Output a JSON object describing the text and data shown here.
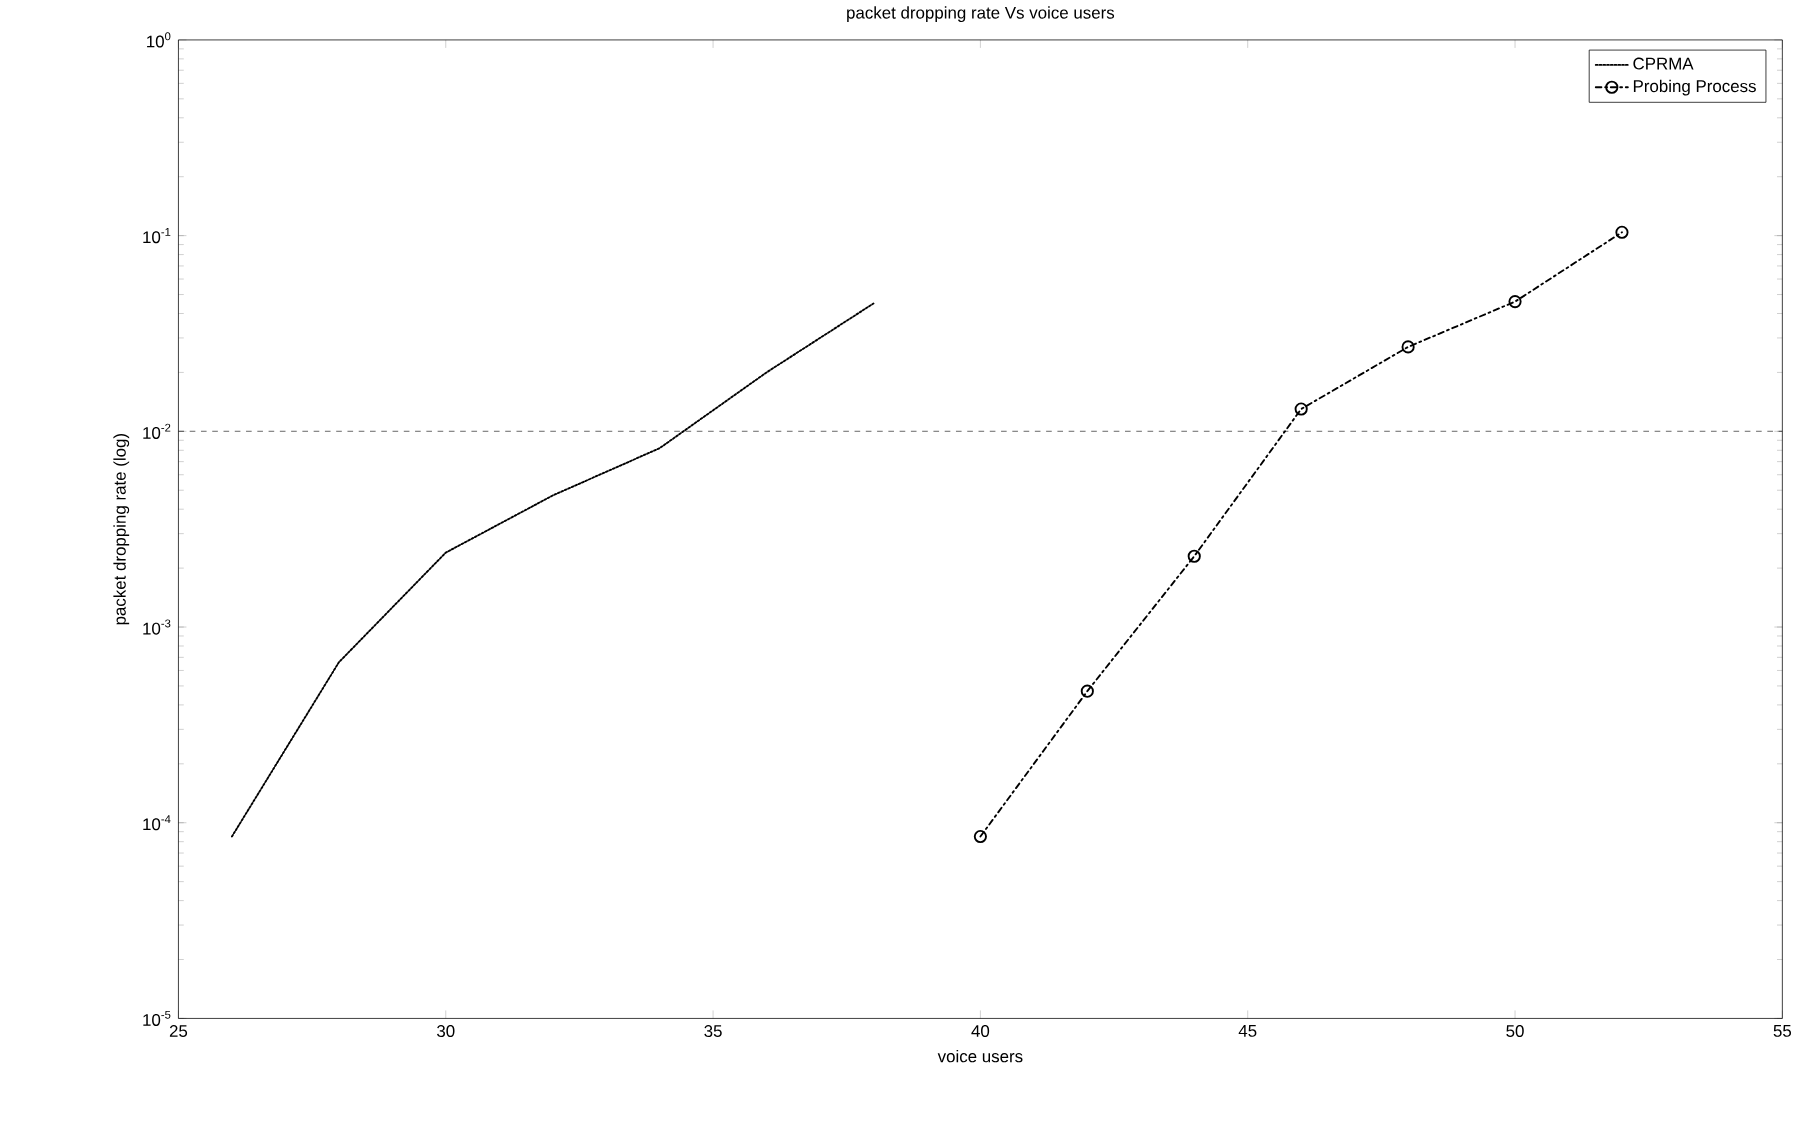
{
  "chart_data": {
    "type": "line",
    "title": "packet dropping rate Vs  voice users",
    "xlabel": "voice users",
    "ylabel": "packet dropping rate (log)",
    "log": "y",
    "xlim": [
      25,
      55
    ],
    "xticks": [
      25,
      30,
      35,
      40,
      45,
      50,
      55
    ],
    "ylim": [
      1e-05,
      1
    ],
    "yticks": [
      {
        "value": 1e-05,
        "label": "10$^{-5}$"
      },
      {
        "value": 0.0001,
        "label": "10$^{-4}$"
      },
      {
        "value": 0.001,
        "label": "10$^{-3}$"
      },
      {
        "value": 0.01,
        "label": "10$^{-2}$"
      },
      {
        "value": 0.1,
        "label": "10$^{-1}$"
      },
      {
        "value": 1,
        "label": "10$^{0}$"
      }
    ],
    "grid": false,
    "legend": "top right",
    "series": [
      {
        "name": "CPRMA",
        "color": "#000000",
        "marker": "none",
        "line_style": "dotted",
        "x": [
          26,
          28,
          30,
          32,
          34,
          36,
          38
        ],
        "values": [
          8.5e-05,
          0.00066,
          0.0024,
          0.0047,
          0.0082,
          0.02,
          0.045
        ]
      },
      {
        "name": "Probing Process",
        "color": "#000000",
        "marker": "circle",
        "line_style": "dashed",
        "x": [
          40,
          42,
          44,
          46,
          48,
          50,
          52
        ],
        "values": [
          8.5e-05,
          0.00047,
          0.0023,
          0.013,
          0.027,
          0.046,
          0.104
        ]
      }
    ],
    "ref_lines": [
      {
        "axis": "y",
        "value": 0.01,
        "line_style": "dashed",
        "color": "#000000"
      }
    ]
  }
}
